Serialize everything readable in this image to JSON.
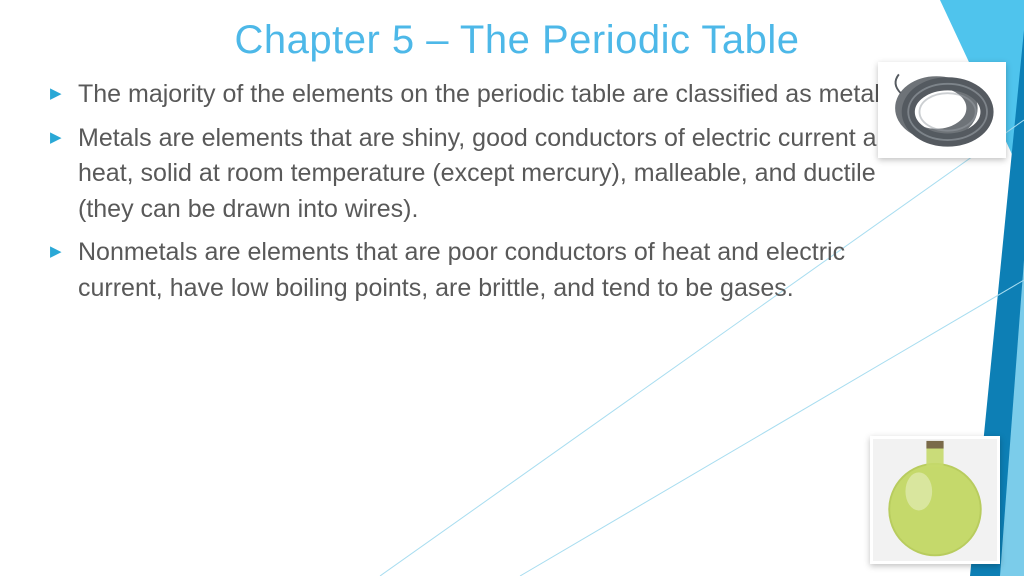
{
  "title": "Chapter 5 – The Periodic Table",
  "title_color": "#4db8e8",
  "bullet_marker_color": "#2aa8d6",
  "text_color": "#595959",
  "bullets": [
    "The majority of the elements on the periodic table are classified as metals.",
    "Metals are elements that are shiny, good conductors of electric current and heat, solid at room temperature (except mercury), malleable, and ductile (they can be drawn into wires).",
    "Nonmetals are elements that are poor conductors of heat and electric current, have low boiling points, are brittle, and tend to be gases."
  ],
  "decoration": {
    "colors": [
      "#29abe2",
      "#4fc4ed",
      "#0d7fb5",
      "#87d5ef"
    ],
    "line_color": "#a8ddf0"
  },
  "images": {
    "wire": {
      "label": "metal-wire-coil",
      "bg": "#ffffff",
      "coil_color": "#555a60",
      "highlight": "#9aa0a6"
    },
    "flask": {
      "label": "chlorine-gas-flask",
      "bg": "#f2f2f2",
      "gas_color": "#c5d96b",
      "glass_color": "#b8cc5e"
    }
  }
}
